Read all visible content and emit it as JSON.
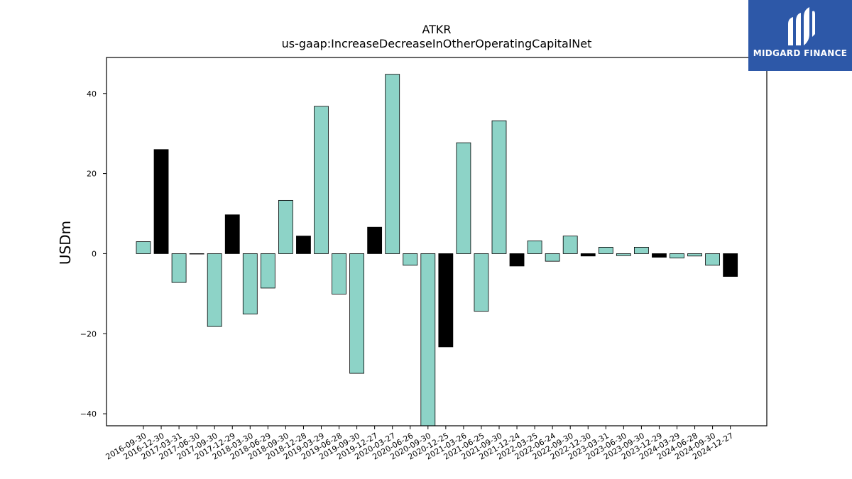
{
  "chart_data": {
    "type": "bar",
    "title": "ATKR",
    "subtitle": "us-gaap:IncreaseDecreaseInOtherOperatingCapitalNet",
    "xlabel": "",
    "ylabel": "USDm",
    "ylim": [
      -43,
      49
    ],
    "yticks": [
      -40,
      -20,
      0,
      20,
      40
    ],
    "grid": false,
    "categories": [
      "2016-09-30",
      "2016-12-30",
      "2017-03-31",
      "2017-06-30",
      "2017-09-30",
      "2017-12-29",
      "2018-03-30",
      "2018-06-29",
      "2018-09-30",
      "2018-12-28",
      "2019-03-29",
      "2019-06-28",
      "2019-09-30",
      "2019-12-27",
      "2020-03-27",
      "2020-06-26",
      "2020-09-30",
      "2020-12-25",
      "2021-03-26",
      "2021-06-25",
      "2021-09-30",
      "2021-12-24",
      "2022-03-25",
      "2022-06-24",
      "2022-09-30",
      "2022-12-30",
      "2023-03-31",
      "2023-06-30",
      "2023-09-30",
      "2023-12-29",
      "2024-03-29",
      "2024-06-28",
      "2024-09-30",
      "2024-12-27"
    ],
    "values": [
      3.0,
      26.0,
      -7.2,
      -0.1,
      -18.2,
      9.7,
      -15.1,
      -8.6,
      13.3,
      4.4,
      36.8,
      -10.1,
      -29.9,
      6.6,
      44.8,
      -2.9,
      -43,
      -23.3,
      27.7,
      -14.4,
      33.2,
      -3.1,
      3.2,
      -1.9,
      4.4,
      -0.6,
      1.6,
      -0.5,
      1.6,
      -0.9,
      -1.1,
      -0.6,
      -2.9,
      -5.7
    ],
    "highlight": [
      false,
      true,
      false,
      true,
      false,
      true,
      false,
      false,
      false,
      true,
      false,
      false,
      false,
      true,
      false,
      false,
      false,
      true,
      false,
      false,
      false,
      true,
      false,
      false,
      false,
      true,
      false,
      false,
      false,
      true,
      false,
      false,
      false,
      true
    ],
    "colors": {
      "bar": "#8dd3c7",
      "highlight": "#000000",
      "edge": "#000000"
    }
  },
  "logo": {
    "text": "MIDGARD FINANCE"
  }
}
